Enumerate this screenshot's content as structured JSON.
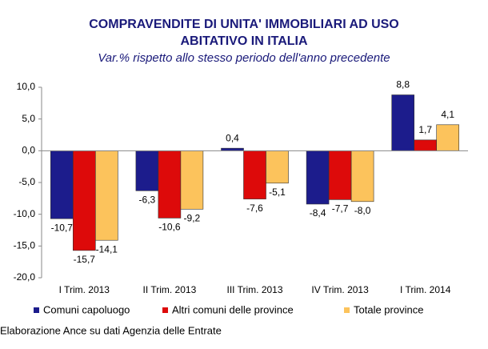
{
  "chart_data": {
    "type": "bar",
    "title": [
      "COMPRAVENDITE DI UNITA' IMMOBILIARI AD USO",
      "ABITATIVO IN ITALIA"
    ],
    "subtitle": "Var.% rispetto allo stesso periodo dell'anno precedente",
    "categories": [
      "I Trim. 2013",
      "II Trim. 2013",
      "III Trim. 2013",
      "IV Trim. 2013",
      "I Trim. 2014"
    ],
    "series": [
      {
        "name": "Comuni capoluogo",
        "color": "#1c1c8c",
        "values": [
          -10.7,
          -6.3,
          0.4,
          -8.4,
          8.8
        ],
        "value_labels": [
          "-10,7",
          "-6,3",
          "0,4",
          "-8,4",
          "8,8"
        ]
      },
      {
        "name": "Altri comuni delle province",
        "color": "#dd0a0a",
        "values": [
          -15.7,
          -10.6,
          -7.6,
          -7.7,
          1.7
        ],
        "value_labels": [
          "-15,7",
          "-10,6",
          "-7,6",
          "-7,7",
          "1,7"
        ]
      },
      {
        "name": "Totale province",
        "color": "#fcc35c",
        "values": [
          -14.1,
          -9.2,
          -5.1,
          -8.0,
          4.1
        ],
        "value_labels": [
          "-14,1",
          "-9,2",
          "-5,1",
          "-8,0",
          "4,1"
        ]
      }
    ],
    "ylim": [
      -20,
      10
    ],
    "yticks": [
      {
        "value": -20,
        "label": "-20,0"
      },
      {
        "value": -15,
        "label": "-15,0"
      },
      {
        "value": -10,
        "label": "-10,0"
      },
      {
        "value": -5,
        "label": "-5,0"
      },
      {
        "value": 0,
        "label": "0,0"
      },
      {
        "value": 5,
        "label": "5,0"
      },
      {
        "value": 10,
        "label": "10,0"
      }
    ],
    "note": "Elaborazione Ance su dati Agenzia delle Entrate"
  }
}
